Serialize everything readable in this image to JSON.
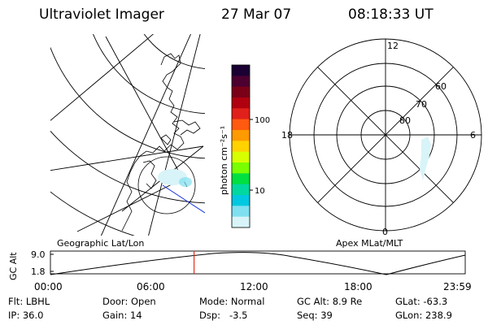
{
  "header": {
    "instrument": "Ultraviolet Imager",
    "date": "27 Mar 07",
    "time": "08:18:33 UT"
  },
  "colorbar": {
    "unit_label": "photon cm⁻²s⁻¹",
    "ticks": [
      "100",
      "10"
    ],
    "colors": [
      "#1a0033",
      "#4b0030",
      "#7a0018",
      "#b00010",
      "#e0201a",
      "#ff5a10",
      "#ff9a00",
      "#ffd200",
      "#d8ff00",
      "#7aff00",
      "#00e040",
      "#00d8a0",
      "#00c8e0",
      "#80e0f0",
      "#d8f4f8"
    ]
  },
  "left_map": {
    "label": "Geographic Lat/Lon"
  },
  "right_map": {
    "label": "Apex MLat/MLT",
    "mlt_labels": {
      "top": "12",
      "bottom": "0",
      "left": "18",
      "right": "6"
    },
    "lat_labels": [
      "60",
      "70",
      "80"
    ]
  },
  "altitude_plot": {
    "ylabel": "GC Alt",
    "yticks": [
      "9.0",
      "1.8"
    ],
    "xticks": [
      "00:00",
      "06:00",
      "12:00",
      "18:00",
      "23:59"
    ],
    "current_time_hours": 8.31
  },
  "info": {
    "filter": "Flt: LBHL",
    "door": "Door: Open",
    "mode": "Mode: Normal",
    "gc_alt": "GC Alt: 8.9 Re",
    "glat": "GLat: -63.3",
    "ip": "IP: 36.0",
    "gain": "Gain: 14",
    "dsp": "Dsp:   -3.5",
    "seq": "Seq: 39",
    "glon": "GLon: 238.9"
  }
}
